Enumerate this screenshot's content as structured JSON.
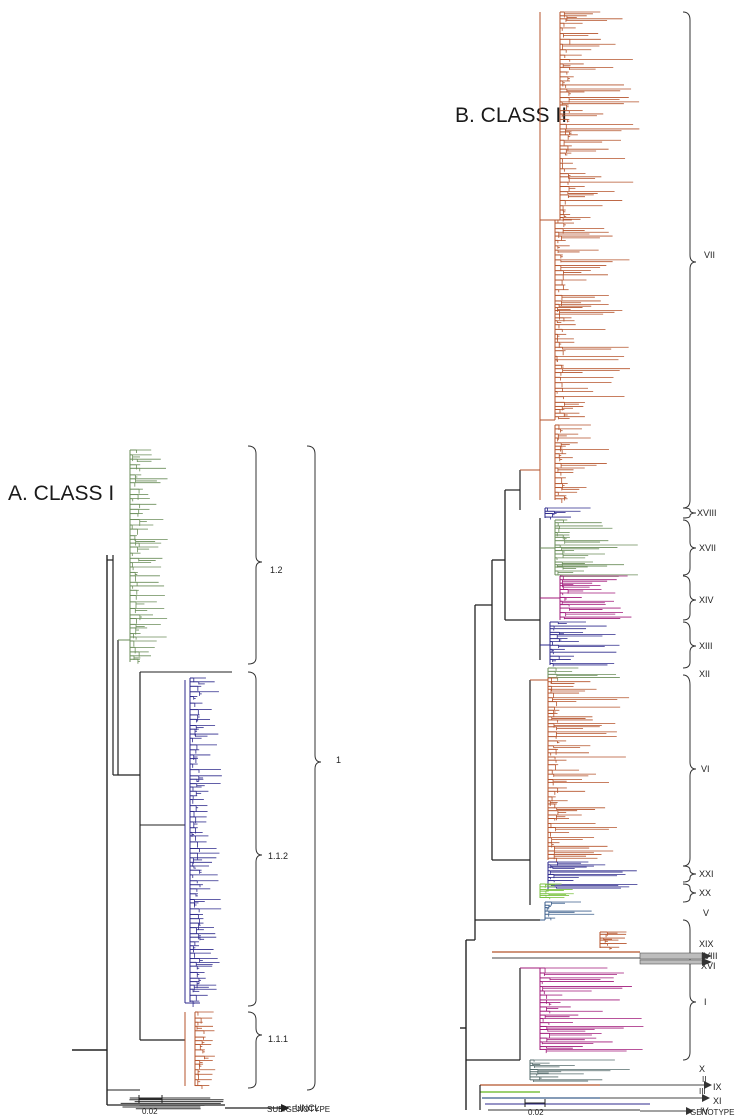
{
  "colors": {
    "green": "#6b8e5a",
    "blue": "#2e2a8c",
    "orange": "#b5532b",
    "magenta": "#a0187a",
    "lime": "#7cc242",
    "slate": "#3c5f8c",
    "dark": "#222222"
  },
  "panel_a": {
    "title": "A. CLASS I",
    "groups": [
      {
        "label": "1.2",
        "color_key": "green"
      },
      {
        "label": "1.1.2",
        "color_key": "blue"
      },
      {
        "label": "1.1.1",
        "color_key": "orange"
      }
    ],
    "outer_label": "1",
    "uncl_label": "UNCL",
    "scale_label": "0.02",
    "footer": "SUB/GENOTYPE"
  },
  "panel_b": {
    "title": "B. CLASS II",
    "genotypes": [
      {
        "label": "VII",
        "color_key": "dark"
      },
      {
        "label": "XVIII",
        "color_key": "dark"
      },
      {
        "label": "XVII",
        "color_key": "dark"
      },
      {
        "label": "XIV",
        "color_key": "dark"
      },
      {
        "label": "XIII",
        "color_key": "dark"
      },
      {
        "label": "XII",
        "color_key": "dark"
      },
      {
        "label": "VI",
        "color_key": "dark"
      },
      {
        "label": "XXI",
        "color_key": "orange"
      },
      {
        "label": "XX",
        "color_key": "orange"
      },
      {
        "label": "V",
        "color_key": "dark"
      },
      {
        "label": "XIX",
        "color_key": "orange"
      },
      {
        "label": "VIII",
        "color_key": "dark"
      },
      {
        "label": "XVI",
        "color_key": "dark"
      },
      {
        "label": "I",
        "color_key": "magenta"
      },
      {
        "label": "X",
        "color_key": "dark"
      },
      {
        "label": "II",
        "color_key": "dark"
      },
      {
        "label": "IX",
        "color_key": "dark"
      },
      {
        "label": "III",
        "color_key": "dark"
      },
      {
        "label": "XI",
        "color_key": "dark"
      },
      {
        "label": "IV",
        "color_key": "dark"
      }
    ],
    "scale_label": "0.02",
    "footer": "GENOTYPE"
  }
}
